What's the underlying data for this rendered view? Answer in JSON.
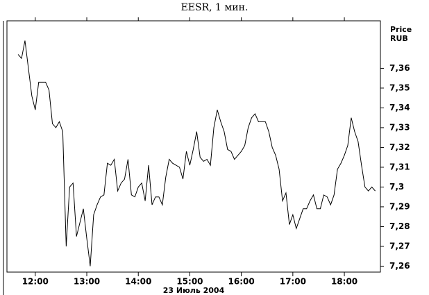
{
  "chart_data": {
    "type": "line",
    "title": "EESR, 1 мин.",
    "xlabel": "23 Июль 2004",
    "ylabel": [
      "Price",
      "RUB"
    ],
    "x": [
      "11:40",
      "11:44",
      "11:48",
      "11:52",
      "11:56",
      "12:00",
      "12:04",
      "12:08",
      "12:12",
      "12:16",
      "12:20",
      "12:24",
      "12:28",
      "12:32",
      "12:36",
      "12:40",
      "12:44",
      "12:48",
      "12:52",
      "12:56",
      "13:00",
      "13:04",
      "13:08",
      "13:12",
      "13:16",
      "13:20",
      "13:24",
      "13:28",
      "13:32",
      "13:36",
      "13:40",
      "13:44",
      "13:48",
      "13:52",
      "13:56",
      "14:00",
      "14:04",
      "14:08",
      "14:12",
      "14:16",
      "14:20",
      "14:24",
      "14:28",
      "14:32",
      "14:36",
      "14:40",
      "14:44",
      "14:48",
      "14:52",
      "14:56",
      "15:00",
      "15:04",
      "15:08",
      "15:12",
      "15:16",
      "15:20",
      "15:24",
      "15:28",
      "15:32",
      "15:36",
      "15:40",
      "15:44",
      "15:48",
      "15:52",
      "15:56",
      "16:00",
      "16:04",
      "16:08",
      "16:12",
      "16:16",
      "16:20",
      "16:24",
      "16:28",
      "16:32",
      "16:36",
      "16:40",
      "16:44",
      "16:48",
      "16:52",
      "16:56",
      "17:00",
      "17:04",
      "17:08",
      "17:12",
      "17:16",
      "17:20",
      "17:24",
      "17:28",
      "17:32",
      "17:36",
      "17:40",
      "17:44",
      "17:48",
      "17:52",
      "17:56",
      "18:00",
      "18:04",
      "18:08",
      "18:12",
      "18:16",
      "18:20",
      "18:24",
      "18:28",
      "18:32",
      "18:36"
    ],
    "values": [
      7.367,
      7.365,
      7.374,
      7.36,
      7.346,
      7.339,
      7.353,
      7.353,
      7.353,
      7.349,
      7.332,
      7.33,
      7.333,
      7.328,
      7.27,
      7.3,
      7.302,
      7.275,
      7.282,
      7.289,
      7.274,
      7.26,
      7.286,
      7.291,
      7.295,
      7.296,
      7.312,
      7.311,
      7.314,
      7.298,
      7.302,
      7.304,
      7.314,
      7.296,
      7.295,
      7.3,
      7.302,
      7.293,
      7.311,
      7.291,
      7.295,
      7.295,
      7.291,
      7.305,
      7.314,
      7.312,
      7.311,
      7.31,
      7.304,
      7.318,
      7.311,
      7.319,
      7.328,
      7.315,
      7.313,
      7.314,
      7.311,
      7.33,
      7.339,
      7.333,
      7.328,
      7.319,
      7.318,
      7.314,
      7.316,
      7.318,
      7.321,
      7.33,
      7.335,
      7.337,
      7.333,
      7.333,
      7.333,
      7.328,
      7.32,
      7.316,
      7.309,
      7.293,
      7.297,
      7.281,
      7.286,
      7.279,
      7.284,
      7.289,
      7.289,
      7.293,
      7.296,
      7.289,
      7.289,
      7.296,
      7.295,
      7.291,
      7.296,
      7.309,
      7.312,
      7.316,
      7.321,
      7.335,
      7.328,
      7.323,
      7.311,
      7.3,
      7.298,
      7.3,
      7.298
    ],
    "color": "#000000",
    "xlim": [
      "11:27",
      "18:42"
    ],
    "xticks": [
      "12:00",
      "13:00",
      "14:00",
      "15:00",
      "16:00",
      "17:00",
      "18:00"
    ],
    "ylim": [
      7.257,
      7.384
    ],
    "yticks": [
      {
        "value": 7.26,
        "label": "7,26"
      },
      {
        "value": 7.27,
        "label": "7,27"
      },
      {
        "value": 7.28,
        "label": "7,28"
      },
      {
        "value": 7.29,
        "label": "7,29"
      },
      {
        "value": 7.3,
        "label": "7,3"
      },
      {
        "value": 7.31,
        "label": "7,31"
      },
      {
        "value": 7.32,
        "label": "7,32"
      },
      {
        "value": 7.33,
        "label": "7,33"
      },
      {
        "value": 7.34,
        "label": "7,34"
      },
      {
        "value": 7.35,
        "label": "7,35"
      },
      {
        "value": 7.36,
        "label": "7,36"
      }
    ]
  }
}
